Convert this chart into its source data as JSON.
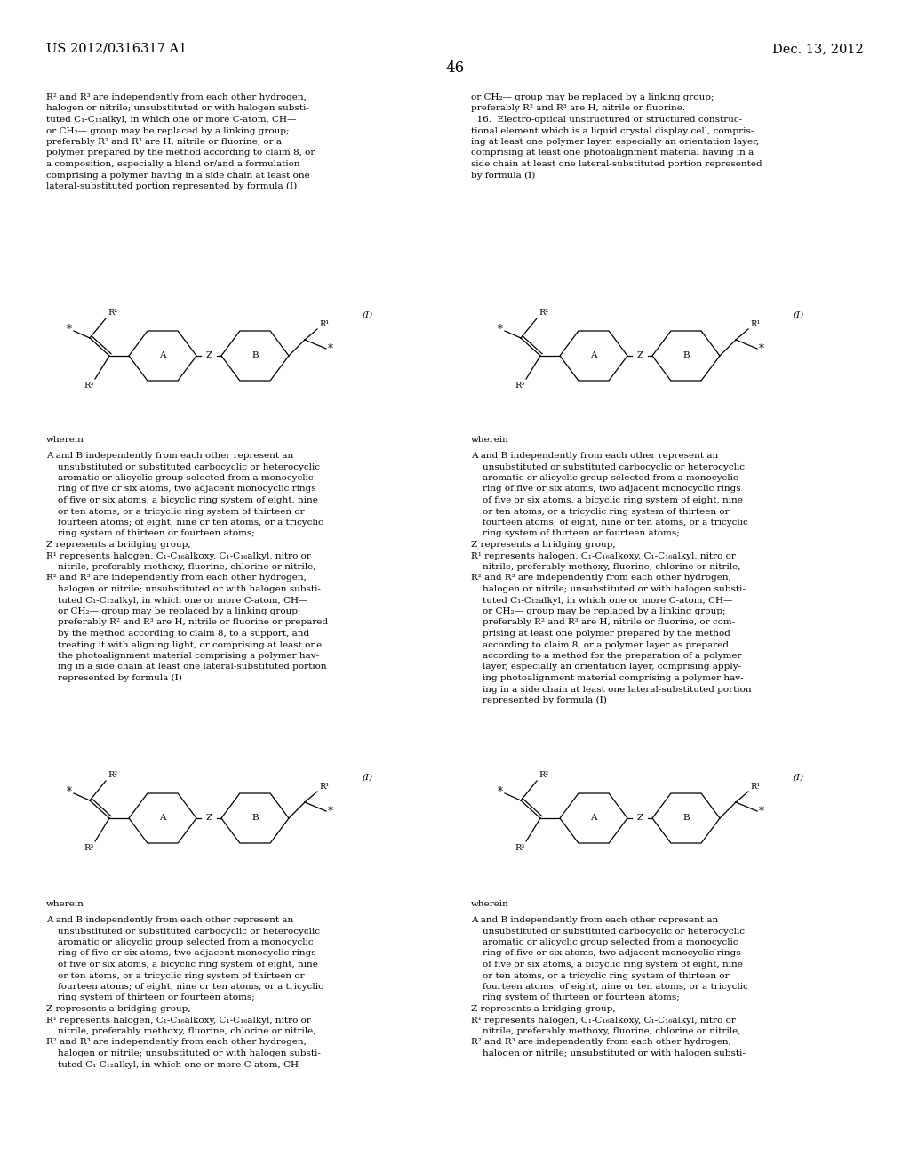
{
  "background_color": "#ffffff",
  "page_number": "46",
  "header_left": "US 2012/0316317 A1",
  "header_right": "Dec. 13, 2012",
  "font_size_header": 10.5,
  "font_size_body": 7.5,
  "font_size_page_num": 12,
  "body_text_left_top": [
    "R² and R³ are independently from each other hydrogen,",
    "halogen or nitrile; unsubstituted or with halogen substi-",
    "tuted C₁-C₁₂alkyl, in which one or more C-atom, CH—",
    "or CH₂— group may be replaced by a linking group;",
    "preferably R² and R³ are H, nitrile or fluorine, or a",
    "polymer prepared by the method according to claim 8, or",
    "a composition, especially a blend or/and a formulation",
    "comprising a polymer having in a side chain at least one",
    "lateral-substituted portion represented by formula (I)"
  ],
  "body_text_right_top": [
    "or CH₂— group may be replaced by a linking group;",
    "preferably R² and R³ are H, nitrile or fluorine.",
    "  16.  Electro-optical unstructured or structured construc-",
    "tional element which is a liquid crystal display cell, compris-",
    "ing at least one polymer layer, especially an orientation layer,",
    "comprising at least one photoalignment material having in a",
    "side chain at least one lateral-substituted portion represented",
    "by formula (I)"
  ],
  "wherein_text": "wherein",
  "body_text_left_mid": [
    "A and B independently from each other represent an",
    "    unsubstituted or substituted carbocyclic or heterocyclic",
    "    aromatic or alicyclic group selected from a monocyclic",
    "    ring of five or six atoms, two adjacent monocyclic rings",
    "    of five or six atoms, a bicyclic ring system of eight, nine",
    "    or ten atoms, or a tricyclic ring system of thirteen or",
    "    fourteen atoms; of eight, nine or ten atoms, or a tricyclic",
    "    ring system of thirteen or fourteen atoms;",
    "Z represents a bridging group,",
    "R¹ represents halogen, C₁-C₁₆alkoxy, C₁-C₁₆alkyl, nitro or",
    "    nitrile, preferably methoxy, fluorine, chlorine or nitrile,",
    "R² and R³ are independently from each other hydrogen,",
    "    halogen or nitrile; unsubstituted or with halogen substi-",
    "    tuted C₁-C₁₂alkyl, in which one or more C-atom, CH—",
    "    or CH₂— group may be replaced by a linking group;",
    "    preferably R² and R³ are H, nitrile or fluorine or prepared",
    "    by the method according to claim 8, to a support, and",
    "    treating it with aligning light, or comprising at least one",
    "    the photoalignment material comprising a polymer hav-",
    "    ing in a side chain at least one lateral-substituted portion",
    "    represented by formula (I)"
  ],
  "body_text_right_mid": [
    "A and B independently from each other represent an",
    "    unsubstituted or substituted carbocyclic or heterocyclic",
    "    aromatic or alicyclic group selected from a monocyclic",
    "    ring of five or six atoms, two adjacent monocyclic rings",
    "    of five or six atoms, a bicyclic ring system of eight, nine",
    "    or ten atoms, or a tricyclic ring system of thirteen or",
    "    fourteen atoms; of eight, nine or ten atoms, or a tricyclic",
    "    ring system of thirteen or fourteen atoms;",
    "Z represents a bridging group,",
    "R¹ represents halogen, C₁-C₁₆alkoxy, C₁-C₁₆alkyl, nitro or",
    "    nitrile, preferably methoxy, fluorine, chlorine or nitrile,",
    "R² and R³ are independently from each other hydrogen,",
    "    halogen or nitrile; unsubstituted or with halogen substi-",
    "    tuted C₁-C₁₂alkyl, in which one or more C-atom, CH—",
    "    or CH₂— group may be replaced by a linking group;",
    "    preferably R² and R³ are H, nitrile or fluorine, or com-",
    "    prising at least one polymer prepared by the method",
    "    according to claim 8, or a polymer layer as prepared",
    "    according to a method for the preparation of a polymer",
    "    layer, especially an orientation layer, comprising apply-",
    "    ing photoalignment material comprising a polymer hav-",
    "    ing in a side chain at least one lateral-substituted portion",
    "    represented by formula (I)"
  ],
  "body_text_left_bot": [
    "A and B independently from each other represent an",
    "    unsubstituted or substituted carbocyclic or heterocyclic",
    "    aromatic or alicyclic group selected from a monocyclic",
    "    ring of five or six atoms, two adjacent monocyclic rings",
    "    of five or six atoms, a bicyclic ring system of eight, nine",
    "    or ten atoms, or a tricyclic ring system of thirteen or",
    "    fourteen atoms; of eight, nine or ten atoms, or a tricyclic",
    "    ring system of thirteen or fourteen atoms;",
    "Z represents a bridging group,",
    "R¹ represents halogen, C₁-C₁₆alkoxy, C₁-C₁₆alkyl, nitro or",
    "    nitrile, preferably methoxy, fluorine, chlorine or nitrile,",
    "R² and R³ are independently from each other hydrogen,",
    "    halogen or nitrile; unsubstituted or with halogen substi-",
    "    tuted C₁-C₁₂alkyl, in which one or more C-atom, CH—"
  ],
  "body_text_right_bot": [
    "A and B independently from each other represent an",
    "    unsubstituted or substituted carbocyclic or heterocyclic",
    "    aromatic or alicyclic group selected from a monocyclic",
    "    ring of five or six atoms, two adjacent monocyclic rings",
    "    of five or six atoms, a bicyclic ring system of eight, nine",
    "    or ten atoms, or a tricyclic ring system of thirteen or",
    "    fourteen atoms; of eight, nine or ten atoms, or a tricyclic",
    "    ring system of thirteen or fourteen atoms;",
    "Z represents a bridging group,",
    "R¹ represents halogen, C₁-C₁₆alkoxy, C₁-C₁₆alkyl, nitro or",
    "    nitrile, preferably methoxy, fluorine, chlorine or nitrile,",
    "R² and R³ are independently from each other hydrogen,",
    "    halogen or nitrile; unsubstituted or with halogen substi-"
  ]
}
